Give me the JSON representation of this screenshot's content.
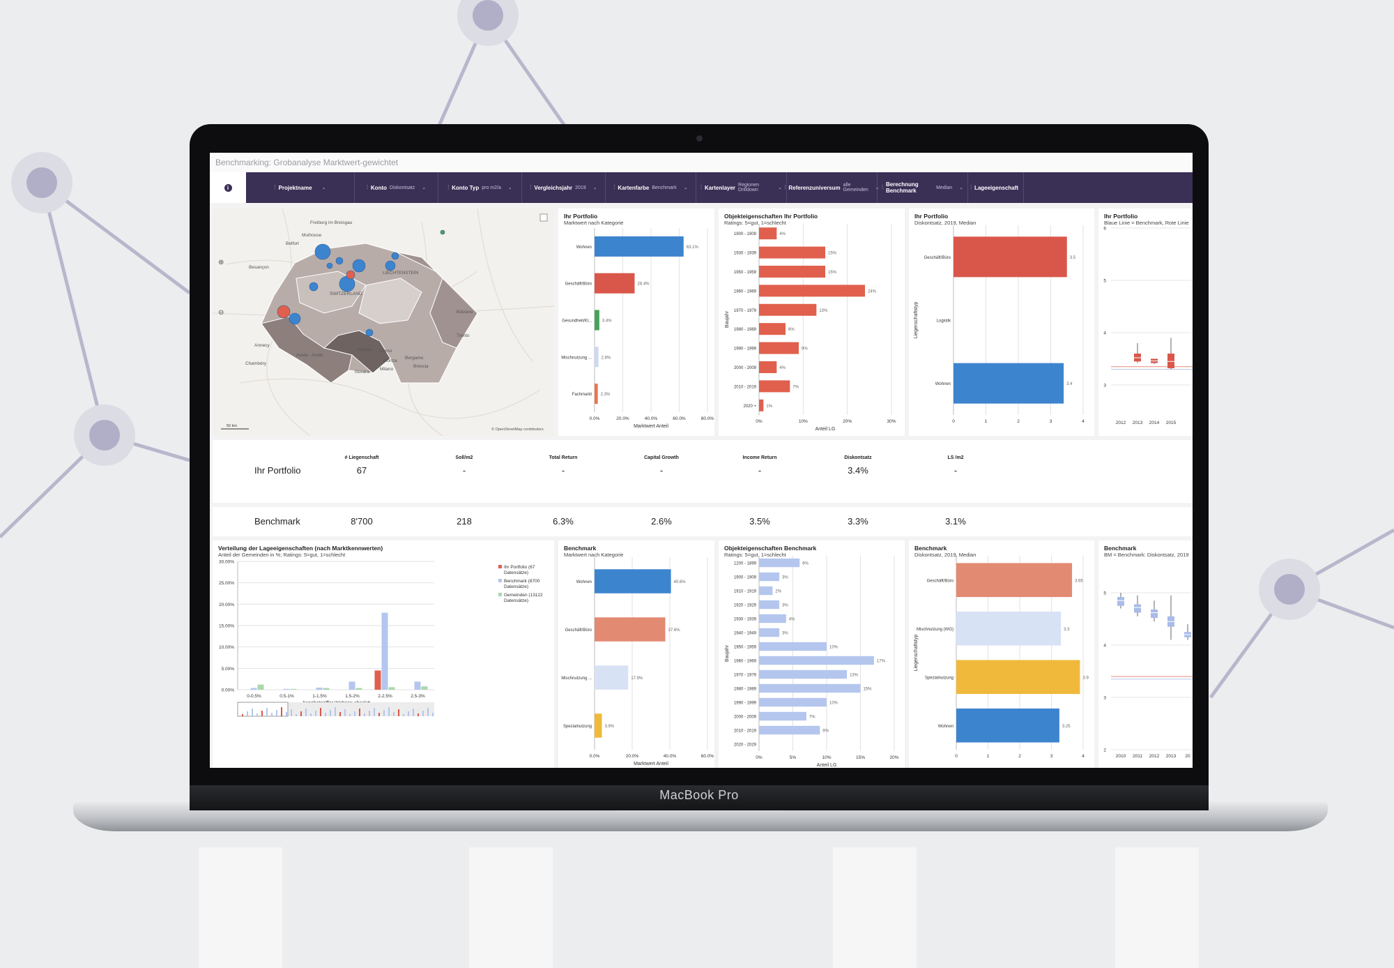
{
  "device": {
    "brand": "MacBook Pro"
  },
  "app": {
    "title": "Benchmarking: Grobanalyse Marktwert-gewichtet"
  },
  "filters": [
    {
      "label": "Projektname",
      "value": ""
    },
    {
      "label": "Konto",
      "value": "Diskontsatz"
    },
    {
      "label": "Konto Typ",
      "value": "pro m2/a"
    },
    {
      "label": "Vergleichsjahr",
      "value": "2019"
    },
    {
      "label": "Kartenfarbe",
      "value": "Benchmark"
    },
    {
      "label": "Kartenlayer",
      "value": "Regionen Drilldown"
    },
    {
      "label": "Referenzuniversum",
      "value": "alle Gemeinden"
    },
    {
      "label": "Berechnung Benchmark",
      "value": "Median"
    },
    {
      "label": "Lageeigenschaft",
      "value": ""
    }
  ],
  "map": {
    "places": [
      "Freiburg im Breisgau",
      "Mulhouse",
      "Belfort",
      "Besançon",
      "Bolzano",
      "Trento",
      "Annecy",
      "Chambéry",
      "Aosta - Aoste",
      "Varese",
      "Como",
      "Monza",
      "Bergamo",
      "Brescia",
      "Novara",
      "Milano",
      "LIECHTENSTEIN",
      "SWITZERLAND"
    ],
    "scale": "50 km",
    "attribution": "© OpenStreetMap contributors"
  },
  "portfolio_category": {
    "title": "Ihr Portfolio",
    "subtitle": "Marktwert nach Kategorie",
    "chart_data": {
      "type": "bar",
      "orientation": "horizontal",
      "categories": [
        "Wohnen",
        "Geschäft/Büro",
        "Gesundheit/Kl...",
        "Mischnutzung ...",
        "Fachmarkt"
      ],
      "values": [
        63.1,
        28.4,
        3.4,
        2.8,
        2.3
      ],
      "labels": [
        "63.1%",
        "28.4%",
        "3.4%",
        "2.8%",
        "2.3%"
      ],
      "colors": [
        "#3d84cf",
        "#d9574a",
        "#4aa15a",
        "#cdd9f2",
        "#e9744f"
      ],
      "ticks": [
        "0.0%",
        "20.0%",
        "40.0%",
        "60.0%",
        "80.0%"
      ],
      "xlim": [
        0,
        80
      ],
      "xlabel": "Marktwert Anteil"
    }
  },
  "portfolio_objekt": {
    "title": "Objekteigenschaften Ihr Portfolio",
    "subtitle": "Ratings: 5=gut, 1=schlecht",
    "chart_data": {
      "type": "bar",
      "orientation": "horizontal",
      "categories": [
        "1900 - 1909",
        "1930 - 1939",
        "1950 - 1959",
        "1960 - 1969",
        "1970 - 1979",
        "1980 - 1989",
        "1990 - 1999",
        "2000 - 2009",
        "2010 - 2019",
        "2020 +"
      ],
      "values": [
        4,
        15,
        15,
        24,
        13,
        6,
        9,
        4,
        7,
        1
      ],
      "labels": [
        "4%",
        "15%",
        "15%",
        "24%",
        "13%",
        "6%",
        "9%",
        "4%",
        "7%",
        "1%"
      ],
      "ticks": [
        "0%",
        "10%",
        "20%",
        "30%"
      ],
      "xlim": [
        0,
        30
      ],
      "xlabel": "Anteil LG",
      "ylabel": "Baujahr"
    }
  },
  "portfolio_diskont": {
    "title": "Ihr Portfolio",
    "subtitle": "Diskontsatz, 2019, Median",
    "chart_data": {
      "type": "bar",
      "orientation": "horizontal",
      "categories": [
        "Geschäft/Büro",
        "Logistik",
        "Wohnen"
      ],
      "values": [
        3.5,
        0,
        3.4
      ],
      "labels": [
        "3.5",
        "",
        "3.4"
      ],
      "colors": [
        "#d9574a",
        "#ffffff",
        "#3d84cf"
      ],
      "ticks": [
        "0",
        "1",
        "2",
        "3",
        "4"
      ],
      "xlim": [
        0,
        4
      ],
      "ylabel": "Liegenschaftstyp"
    }
  },
  "portfolio_box": {
    "title": "Ihr Portfolio",
    "subtitle": "Blaue Linie = Benchmark, Rote Linie",
    "chart_data": {
      "type": "box",
      "x": [
        "2012",
        "2013",
        "2014",
        "2015"
      ],
      "yticks": [
        "3",
        "4",
        "5",
        "6"
      ],
      "ylim": [
        2.4,
        6
      ]
    }
  },
  "kpis": {
    "labels": [
      "# Liegenschaft",
      "Soll/m2",
      "Total Return",
      "Capital Growth",
      "Income Return",
      "Diskontsatz",
      "LS /m2"
    ],
    "portfolio": {
      "name": "Ihr Portfolio",
      "values": [
        "67",
        "-",
        "-",
        "-",
        "-",
        "3.4%",
        "-"
      ]
    },
    "benchmark": {
      "name": "Benchmark",
      "values": [
        "8'700",
        "218",
        "6.3%",
        "2.6%",
        "3.5%",
        "3.3%",
        "3.1%"
      ]
    }
  },
  "lage": {
    "title": "Verteilung der Lageeigenschaften (nach Marktkennwerten)",
    "subtitle": "Anteil der Gemeinden in %; Ratings: 5=gut, 1=schlecht",
    "chart_data": {
      "type": "bar",
      "categories": [
        "0-0.5%",
        "0.5-1%",
        "1-1.5%",
        "1.5-2%",
        "2-2.5%",
        "2.5-3%"
      ],
      "series": [
        {
          "name": "Ihr Portfolio (67 Datensätze)",
          "color": "#e0604d",
          "values": [
            0,
            0,
            0,
            0,
            4.5,
            0
          ]
        },
        {
          "name": "Benchmark (8700 Datensätze)",
          "color": "#b4c6ee",
          "values": [
            0.4,
            0.2,
            0.5,
            1.9,
            18,
            1.9
          ]
        },
        {
          "name": "Gemeinden (13122 Datensätze)",
          "color": "#a9d9ad",
          "values": [
            1.2,
            0.2,
            0.4,
            0.4,
            0.6,
            0.8
          ]
        }
      ],
      "yticks": [
        "0.00%",
        "5.00%",
        "10.00%",
        "15.00%",
        "20.00%",
        "25.00%",
        "30.00%"
      ],
      "ylim": [
        0,
        30
      ],
      "xlabel": "Angebotsziffer Wohnen absolut"
    }
  },
  "bench_category": {
    "title": "Benchmark",
    "subtitle": "Marktwert nach Kategorie",
    "chart_data": {
      "type": "bar",
      "orientation": "horizontal",
      "categories": [
        "Wohnen",
        "Geschäft/Büro",
        "Mischnutzung ...",
        "Spezialnutzung"
      ],
      "values": [
        40.6,
        37.6,
        17.9,
        3.9
      ],
      "labels": [
        "40.6%",
        "37.6%",
        "17.9%",
        "3.9%"
      ],
      "colors": [
        "#3d84cf",
        "#e38a72",
        "#d8e2f5",
        "#f0b93c"
      ],
      "ticks": [
        "0.0%",
        "20.0%",
        "40.0%",
        "60.0%"
      ],
      "xlim": [
        0,
        60
      ],
      "xlabel": "Marktwert Anteil"
    }
  },
  "bench_objekt": {
    "title": "Objekteigenschaften Benchmark",
    "subtitle": "Ratings: 5=gut, 1=schlecht",
    "chart_data": {
      "type": "bar",
      "orientation": "horizontal",
      "categories": [
        "1200 - 1899",
        "1900 - 1909",
        "1910 - 1919",
        "1920 - 1929",
        "1930 - 1939",
        "1940 - 1949",
        "1950 - 1959",
        "1960 - 1969",
        "1970 - 1979",
        "1980 - 1989",
        "1990 - 1999",
        "2000 - 2009",
        "2010 - 2019",
        "2020 - 2029"
      ],
      "values": [
        6,
        3,
        2,
        3,
        4,
        3,
        10,
        17,
        13,
        15,
        10,
        7,
        9,
        0
      ],
      "labels": [
        "6%",
        "3%",
        "2%",
        "3%",
        "4%",
        "3%",
        "10%",
        "17%",
        "13%",
        "15%",
        "10%",
        "7%",
        "9%",
        "0%"
      ],
      "ticks": [
        "0%",
        "5%",
        "10%",
        "15%",
        "20%"
      ],
      "xlim": [
        0,
        20
      ],
      "xlabel": "Anteil LG",
      "ylabel": "Baujahr"
    }
  },
  "bench_diskont": {
    "title": "Benchmark",
    "subtitle": "Diskontsatz, 2019, Median",
    "chart_data": {
      "type": "bar",
      "orientation": "horizontal",
      "categories": [
        "Geschäft/Büro",
        "Mischnutzung (WG)",
        "Spezialnutzung",
        "Wohnen"
      ],
      "values": [
        3.65,
        3.3,
        3.9,
        3.25
      ],
      "labels": [
        "3.65",
        "3.3",
        "3.9",
        "3.25"
      ],
      "colors": [
        "#e38a72",
        "#d8e2f5",
        "#f0b93c",
        "#3d84cf"
      ],
      "ticks": [
        "0",
        "1",
        "2",
        "3",
        "4"
      ],
      "xlim": [
        0,
        4
      ],
      "ylabel": "Liegenschaftstyp"
    }
  },
  "bench_box": {
    "title": "Benchmark",
    "subtitle": "BM = Benchmark: Diskontsatz, 2019",
    "chart_data": {
      "type": "box",
      "x": [
        "2010",
        "2011",
        "2012",
        "2013",
        "20"
      ],
      "yticks": [
        "2",
        "3",
        "4",
        "5"
      ],
      "ylim": [
        2,
        5.6
      ]
    }
  }
}
